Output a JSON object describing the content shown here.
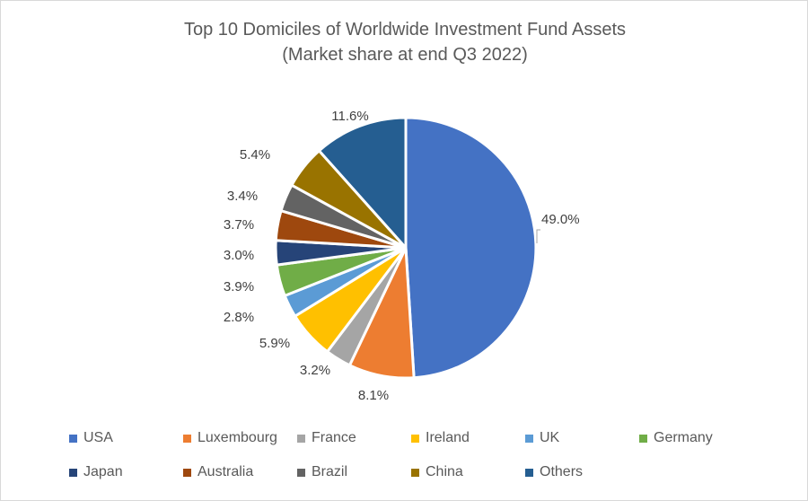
{
  "title": {
    "line1": "Top 10 Domiciles of Worldwide Investment Fund Assets",
    "line2": "(Market share at end Q3 2022)"
  },
  "chart_data": {
    "type": "pie",
    "title": "Top 10 Domiciles of Worldwide Investment Fund Assets (Market share at end Q3 2022)",
    "categories": [
      "USA",
      "Luxembourg",
      "France",
      "Ireland",
      "UK",
      "Germany",
      "Japan",
      "Australia",
      "Brazil",
      "China",
      "Others"
    ],
    "values": [
      49.0,
      8.1,
      3.2,
      5.9,
      2.8,
      3.9,
      3.0,
      3.7,
      3.4,
      5.4,
      11.6
    ],
    "labels": [
      "49.0%",
      "8.1%",
      "3.2%",
      "5.9%",
      "2.8%",
      "3.9%",
      "3.0%",
      "3.7%",
      "3.4%",
      "5.4%",
      "11.6%"
    ],
    "colors": [
      "#4472C4",
      "#ED7D31",
      "#A5A5A5",
      "#FFC000",
      "#5B9BD5",
      "#70AD47",
      "#264478",
      "#9E480E",
      "#636363",
      "#997300",
      "#255E91"
    ],
    "legend_position": "bottom",
    "unit": "%"
  },
  "legend": {
    "rows": [
      [
        "USA",
        "Luxembourg",
        "France",
        "Ireland",
        "UK",
        "Germany"
      ],
      [
        "Japan",
        "Australia",
        "Brazil",
        "China",
        "Others"
      ]
    ]
  }
}
